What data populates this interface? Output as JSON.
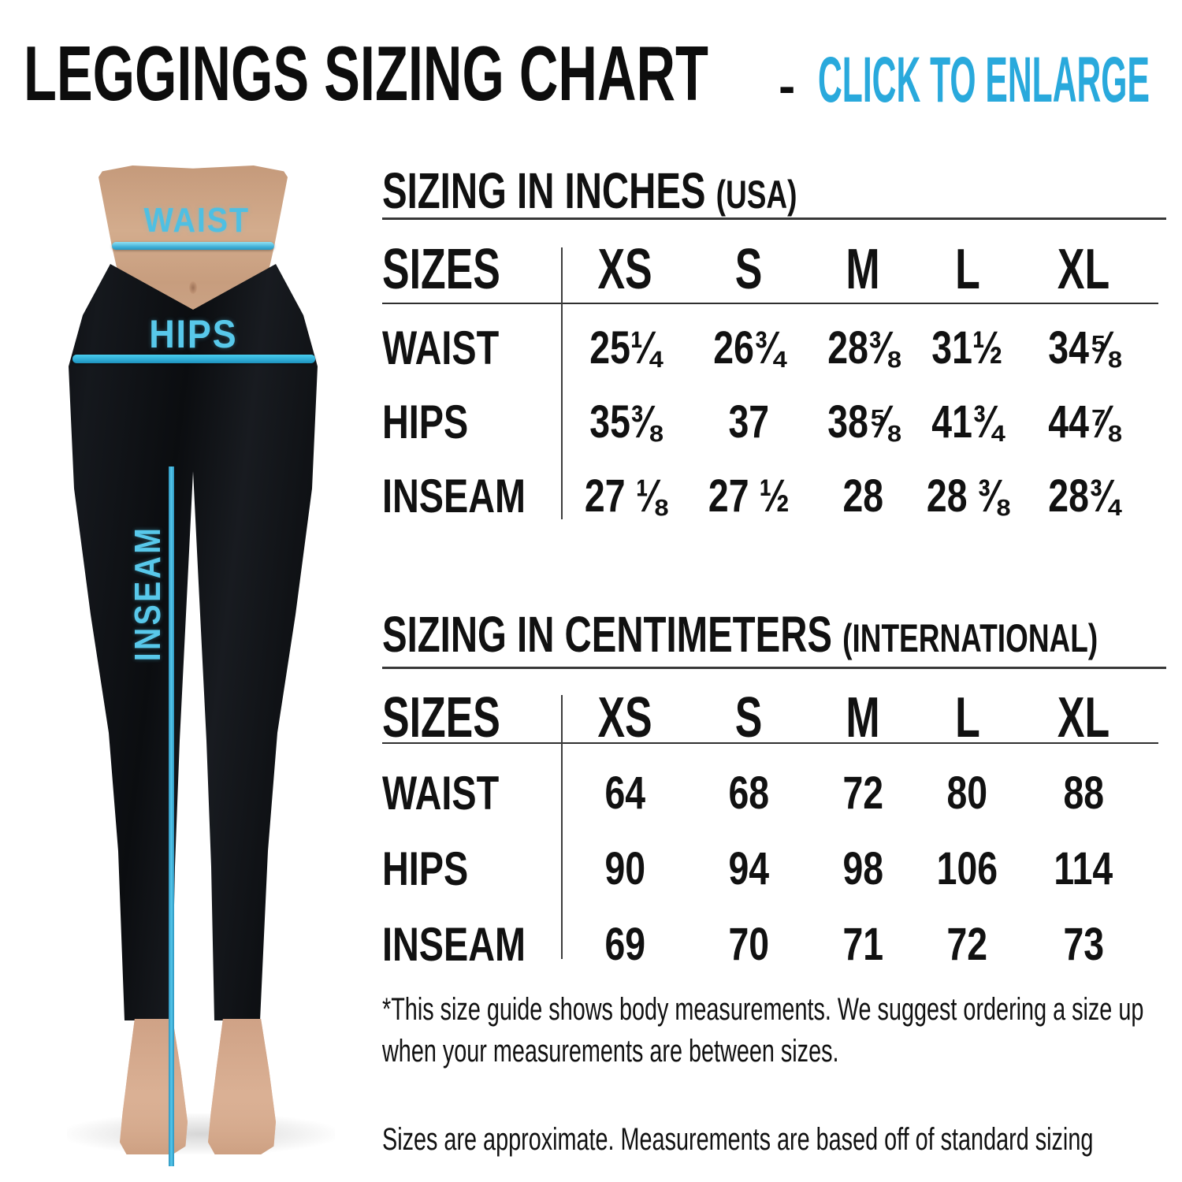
{
  "header": {
    "title": "LEGGINGS SIZING CHART",
    "separator": "-",
    "cta": "CLICK TO ENLARGE",
    "cta_color": "#29a9dc"
  },
  "figure": {
    "waist_label": "WAIST",
    "hips_label": "HIPS",
    "inseam_label": "INSEAM",
    "annotation_color": "#4fbfe2",
    "leggings_color": "#0d0f12",
    "skin_color": "#d3ac8d"
  },
  "sections": {
    "inches": {
      "title": "SIZING IN INCHES",
      "suffix": "(USA)"
    },
    "cm": {
      "title": "SIZING IN CENTIMETERS",
      "suffix": "(INTERNATIONAL)"
    }
  },
  "tables": {
    "inches": {
      "header": [
        "SIZES",
        "XS",
        "S",
        "M",
        "L",
        "XL"
      ],
      "rows": [
        {
          "label": "WAIST",
          "values": [
            "25¼",
            "26¾",
            "28⅜",
            "31½",
            "34⅝"
          ]
        },
        {
          "label": "HIPS",
          "values": [
            "35⅜",
            "37",
            "38⅝",
            "41¾",
            "44⅞"
          ]
        },
        {
          "label": "INSEAM",
          "values": [
            "27 ⅛",
            "27 ½",
            "28",
            "28 ⅜",
            "28¾"
          ]
        }
      ]
    },
    "cm": {
      "header": [
        "SIZES",
        "XS",
        "S",
        "M",
        "L",
        "XL"
      ],
      "rows": [
        {
          "label": "WAIST",
          "values": [
            "64",
            "68",
            "72",
            "80",
            "88"
          ]
        },
        {
          "label": "HIPS",
          "values": [
            "90",
            "94",
            "98",
            "106",
            "114"
          ]
        },
        {
          "label": "INSEAM",
          "values": [
            "69",
            "70",
            "71",
            "72",
            "73"
          ]
        }
      ]
    }
  },
  "notes": {
    "note1": "*This size guide shows body measurements. We suggest ordering a size up when your measurements are between sizes.",
    "note2": "Sizes are approximate. Measurements are based off of standard sizing"
  }
}
